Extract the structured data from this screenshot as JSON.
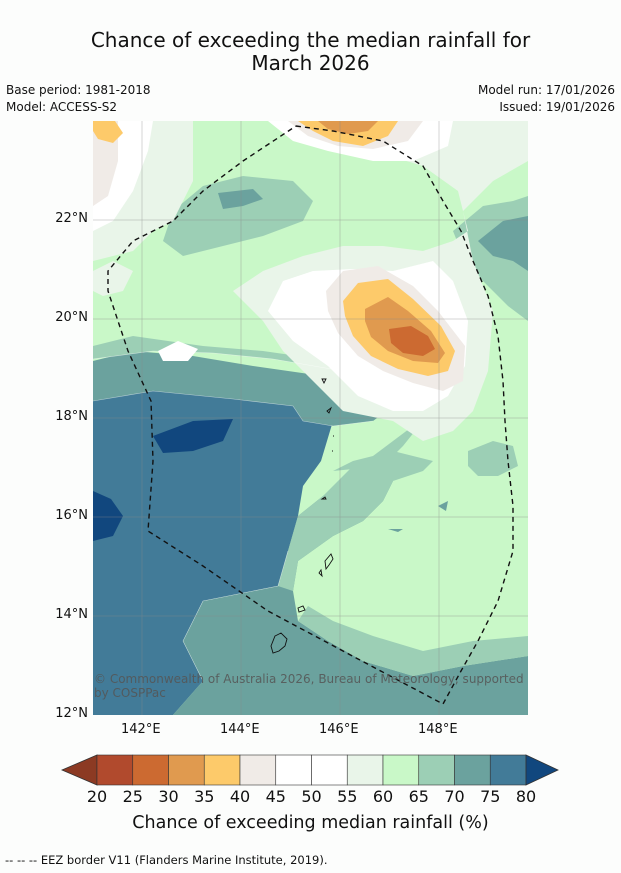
{
  "title": {
    "line1": "Chance of exceeding the median rainfall for",
    "line2": "March 2026"
  },
  "meta": {
    "base_period": "Base period: 1981-2018",
    "model": "Model: ACCESS-S2",
    "model_run": "Model run: 17/01/2026",
    "issued": "Issued: 19/01/2026"
  },
  "map": {
    "lat_ticks": [
      "22°N",
      "20°N",
      "18°N",
      "16°N",
      "14°N",
      "12°N"
    ],
    "lon_ticks": [
      "142°E",
      "144°E",
      "146°E",
      "148°E"
    ],
    "copyright": "© Commonwealth of Australia 2026, Bureau of Meteorology, supported by COSPPac",
    "eez_line": "dashed-black",
    "coastlines": [
      "small-islands-outline"
    ]
  },
  "colorbar": {
    "ticks": [
      "20",
      "25",
      "30",
      "35",
      "40",
      "45",
      "50",
      "55",
      "60",
      "65",
      "70",
      "75",
      "80"
    ],
    "colors": [
      "#8c3a23",
      "#b14a2d",
      "#cc6a31",
      "#e09a4f",
      "#fdca6a",
      "#f0ebe7",
      "#ffffff",
      "#ffffff",
      "#e9f5e9",
      "#c9f8c8",
      "#9ccfb5",
      "#6ba29e",
      "#427b98",
      "#11477e"
    ],
    "label": "Chance of exceeding median rainfall (%)"
  },
  "footer": "--  --  -- EEZ border V11 (Flanders Marine Institute, 2019)."
}
